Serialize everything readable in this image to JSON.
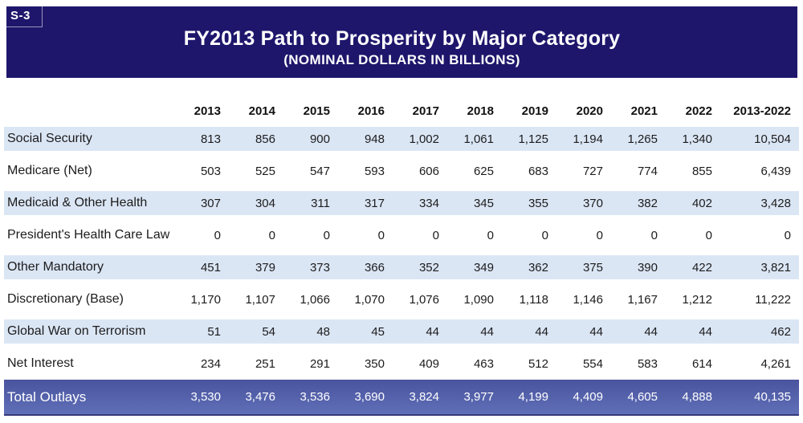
{
  "slide": {
    "sheet_label": "S-3",
    "title": "FY2013 Path to Prosperity by Major Category",
    "subtitle": "(NOMINAL DOLLARS IN BILLIONS)"
  },
  "colors": {
    "header_bg": "#1e166b",
    "stripe_bg": "#dbe6f5",
    "total_bg_top": "#4a549e",
    "total_bg_bottom": "#5f6fb8",
    "body_text": "#1c1c1c"
  },
  "table": {
    "label_column_header": "",
    "columns": [
      "2013",
      "2014",
      "2015",
      "2016",
      "2017",
      "2018",
      "2019",
      "2020",
      "2021",
      "2022",
      "2013-2022"
    ],
    "rows": [
      {
        "label": "Social Security",
        "striped": true,
        "values": [
          "813",
          "856",
          "900",
          "948",
          "1,002",
          "1,061",
          "1,125",
          "1,194",
          "1,265",
          "1,340",
          "10,504"
        ]
      },
      {
        "label": "Medicare (Net)",
        "striped": false,
        "values": [
          "503",
          "525",
          "547",
          "593",
          "606",
          "625",
          "683",
          "727",
          "774",
          "855",
          "6,439"
        ]
      },
      {
        "label": "Medicaid & Other Health",
        "striped": true,
        "values": [
          "307",
          "304",
          "311",
          "317",
          "334",
          "345",
          "355",
          "370",
          "382",
          "402",
          "3,428"
        ]
      },
      {
        "label": "President's Health Care Law",
        "striped": false,
        "values": [
          "0",
          "0",
          "0",
          "0",
          "0",
          "0",
          "0",
          "0",
          "0",
          "0",
          "0"
        ]
      },
      {
        "label": "Other Mandatory",
        "striped": true,
        "values": [
          "451",
          "379",
          "373",
          "366",
          "352",
          "349",
          "362",
          "375",
          "390",
          "422",
          "3,821"
        ]
      },
      {
        "label": "Discretionary (Base)",
        "striped": false,
        "values": [
          "1,170",
          "1,107",
          "1,066",
          "1,070",
          "1,076",
          "1,090",
          "1,118",
          "1,146",
          "1,167",
          "1,212",
          "11,222"
        ]
      },
      {
        "label": "Global War on Terrorism",
        "striped": true,
        "values": [
          "51",
          "54",
          "48",
          "45",
          "44",
          "44",
          "44",
          "44",
          "44",
          "44",
          "462"
        ]
      },
      {
        "label": "Net Interest",
        "striped": false,
        "values": [
          "234",
          "251",
          "291",
          "350",
          "409",
          "463",
          "512",
          "554",
          "583",
          "614",
          "4,261"
        ]
      }
    ],
    "total_row": {
      "label": "Total Outlays",
      "values": [
        "3,530",
        "3,476",
        "3,536",
        "3,690",
        "3,824",
        "3,977",
        "4,199",
        "4,409",
        "4,605",
        "4,888",
        "40,135"
      ]
    }
  },
  "chart_data": {
    "type": "table",
    "title": "FY2013 Path to Prosperity by Major Category (Nominal Dollars in Billions)",
    "categories": [
      "2013",
      "2014",
      "2015",
      "2016",
      "2017",
      "2018",
      "2019",
      "2020",
      "2021",
      "2022",
      "2013-2022"
    ],
    "series": [
      {
        "name": "Social Security",
        "values": [
          813,
          856,
          900,
          948,
          1002,
          1061,
          1125,
          1194,
          1265,
          1340,
          10504
        ]
      },
      {
        "name": "Medicare (Net)",
        "values": [
          503,
          525,
          547,
          593,
          606,
          625,
          683,
          727,
          774,
          855,
          6439
        ]
      },
      {
        "name": "Medicaid & Other Health",
        "values": [
          307,
          304,
          311,
          317,
          334,
          345,
          355,
          370,
          382,
          402,
          3428
        ]
      },
      {
        "name": "President's Health Care Law",
        "values": [
          0,
          0,
          0,
          0,
          0,
          0,
          0,
          0,
          0,
          0,
          0
        ]
      },
      {
        "name": "Other Mandatory",
        "values": [
          451,
          379,
          373,
          366,
          352,
          349,
          362,
          375,
          390,
          422,
          3821
        ]
      },
      {
        "name": "Discretionary (Base)",
        "values": [
          1170,
          1107,
          1066,
          1070,
          1076,
          1090,
          1118,
          1146,
          1167,
          1212,
          11222
        ]
      },
      {
        "name": "Global War on Terrorism",
        "values": [
          51,
          54,
          48,
          45,
          44,
          44,
          44,
          44,
          44,
          44,
          462
        ]
      },
      {
        "name": "Net Interest",
        "values": [
          234,
          251,
          291,
          350,
          409,
          463,
          512,
          554,
          583,
          614,
          4261
        ]
      },
      {
        "name": "Total Outlays",
        "values": [
          3530,
          3476,
          3536,
          3690,
          3824,
          3977,
          4199,
          4409,
          4605,
          4888,
          40135
        ]
      }
    ]
  }
}
